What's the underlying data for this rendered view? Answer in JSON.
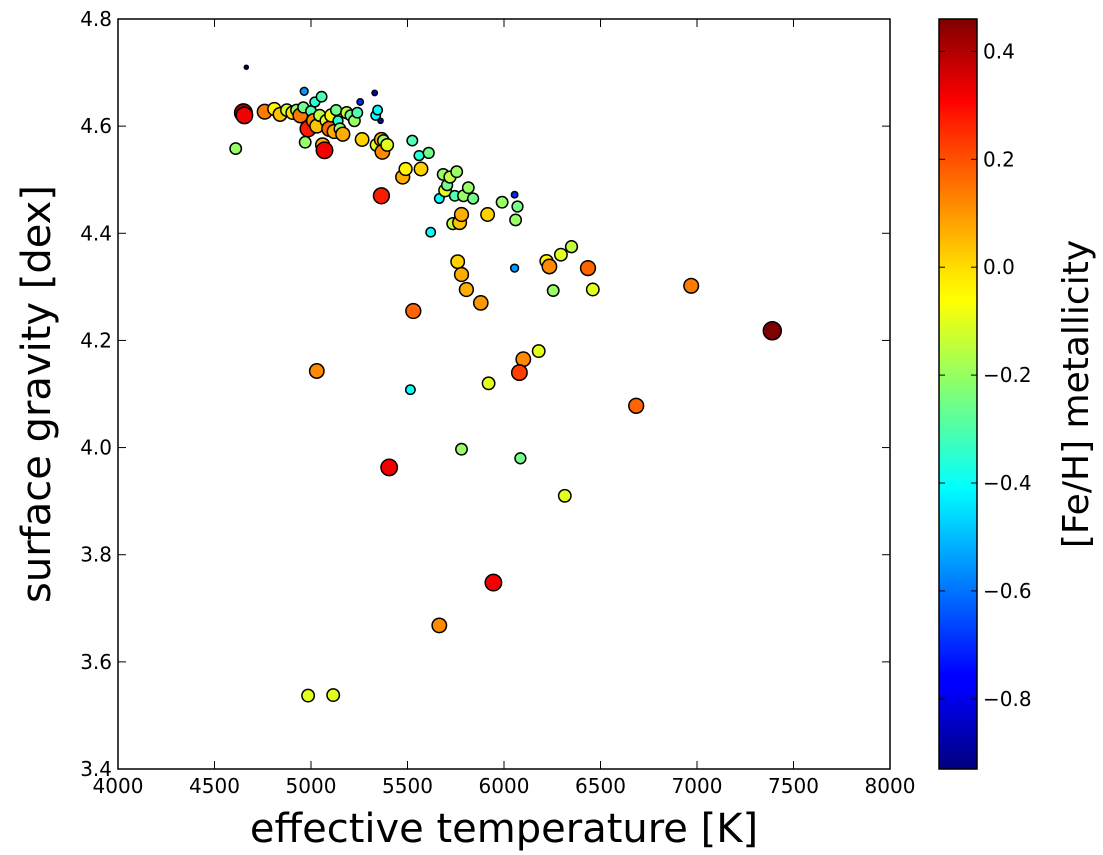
{
  "chart_data": {
    "type": "scatter",
    "title": "",
    "xlabel": "effective temperature [K]",
    "ylabel": "surface gravity [dex]",
    "xlim": [
      4000,
      8000
    ],
    "ylim": [
      3.4,
      4.8
    ],
    "x_ticks": [
      "4000",
      "4500",
      "5000",
      "5500",
      "6000",
      "6500",
      "7000",
      "7500",
      "8000"
    ],
    "y_ticks": [
      "3.4",
      "3.6",
      "3.8",
      "4.0",
      "4.2",
      "4.4",
      "4.6",
      "4.8"
    ],
    "grid": false,
    "colorbar": {
      "label": "[Fe/H] metallicity",
      "range": [
        -0.93,
        0.46
      ],
      "ticks": [
        "0.4",
        "0.2",
        "0.0",
        "−0.2",
        "−0.4",
        "−0.6",
        "−0.8"
      ],
      "tick_values": [
        0.4,
        0.2,
        0.0,
        -0.2,
        -0.4,
        -0.6,
        -0.8
      ],
      "colormap": "jet"
    },
    "note_marker_size": "marker size grows with metallicity",
    "points": [
      {
        "x": 4665,
        "y": 4.71,
        "feh": -0.93
      },
      {
        "x": 4650,
        "y": 4.625,
        "feh": 0.42
      },
      {
        "x": 4655,
        "y": 4.62,
        "feh": 0.3
      },
      {
        "x": 4760,
        "y": 4.627,
        "feh": 0.12
      },
      {
        "x": 4810,
        "y": 4.632,
        "feh": -0.05
      },
      {
        "x": 4840,
        "y": 4.622,
        "feh": 0.02
      },
      {
        "x": 4875,
        "y": 4.63,
        "feh": -0.12
      },
      {
        "x": 4905,
        "y": 4.625,
        "feh": -0.02
      },
      {
        "x": 4925,
        "y": 4.63,
        "feh": -0.2
      },
      {
        "x": 4945,
        "y": 4.62,
        "feh": 0.12
      },
      {
        "x": 4960,
        "y": 4.635,
        "feh": -0.25
      },
      {
        "x": 4965,
        "y": 4.665,
        "feh": -0.55
      },
      {
        "x": 4970,
        "y": 4.57,
        "feh": -0.2
      },
      {
        "x": 4985,
        "y": 4.595,
        "feh": 0.25
      },
      {
        "x": 5000,
        "y": 4.628,
        "feh": -0.3
      },
      {
        "x": 5015,
        "y": 4.61,
        "feh": 0.1
      },
      {
        "x": 5020,
        "y": 4.645,
        "feh": -0.35
      },
      {
        "x": 5030,
        "y": 4.6,
        "feh": 0.02
      },
      {
        "x": 5045,
        "y": 4.62,
        "feh": -0.15
      },
      {
        "x": 5055,
        "y": 4.655,
        "feh": -0.3
      },
      {
        "x": 5060,
        "y": 4.565,
        "feh": 0.05
      },
      {
        "x": 5070,
        "y": 4.555,
        "feh": 0.3
      },
      {
        "x": 5080,
        "y": 4.61,
        "feh": -0.1
      },
      {
        "x": 5095,
        "y": 4.595,
        "feh": 0.15
      },
      {
        "x": 5105,
        "y": 4.62,
        "feh": -0.05
      },
      {
        "x": 5120,
        "y": 4.59,
        "feh": 0.05
      },
      {
        "x": 5130,
        "y": 4.63,
        "feh": -0.25
      },
      {
        "x": 5140,
        "y": 4.61,
        "feh": -0.35
      },
      {
        "x": 5150,
        "y": 4.595,
        "feh": -0.2
      },
      {
        "x": 5165,
        "y": 4.585,
        "feh": 0.05
      },
      {
        "x": 5185,
        "y": 4.625,
        "feh": -0.15
      },
      {
        "x": 5205,
        "y": 4.62,
        "feh": -0.25
      },
      {
        "x": 5225,
        "y": 4.61,
        "feh": -0.2
      },
      {
        "x": 5240,
        "y": 4.625,
        "feh": -0.3
      },
      {
        "x": 5255,
        "y": 4.645,
        "feh": -0.7
      },
      {
        "x": 5265,
        "y": 4.575,
        "feh": 0.0
      },
      {
        "x": 5330,
        "y": 4.662,
        "feh": -0.8
      },
      {
        "x": 5335,
        "y": 4.62,
        "feh": -0.4
      },
      {
        "x": 5340,
        "y": 4.565,
        "feh": -0.1
      },
      {
        "x": 5345,
        "y": 4.63,
        "feh": -0.4
      },
      {
        "x": 5360,
        "y": 4.61,
        "feh": -0.82
      },
      {
        "x": 5365,
        "y": 4.575,
        "feh": 0.05
      },
      {
        "x": 5370,
        "y": 4.552,
        "feh": 0.1
      },
      {
        "x": 5375,
        "y": 4.573,
        "feh": -0.2
      },
      {
        "x": 5395,
        "y": 4.565,
        "feh": -0.1
      },
      {
        "x": 5365,
        "y": 4.47,
        "feh": 0.25
      },
      {
        "x": 5475,
        "y": 4.505,
        "feh": 0.05
      },
      {
        "x": 5490,
        "y": 4.52,
        "feh": -0.05
      },
      {
        "x": 5525,
        "y": 4.573,
        "feh": -0.3
      },
      {
        "x": 5560,
        "y": 4.545,
        "feh": -0.35
      },
      {
        "x": 5570,
        "y": 4.52,
        "feh": 0.0
      },
      {
        "x": 5610,
        "y": 4.55,
        "feh": -0.25
      },
      {
        "x": 5620,
        "y": 4.402,
        "feh": -0.4
      },
      {
        "x": 5665,
        "y": 4.465,
        "feh": -0.4
      },
      {
        "x": 5685,
        "y": 4.51,
        "feh": -0.2
      },
      {
        "x": 5695,
        "y": 4.48,
        "feh": -0.1
      },
      {
        "x": 5705,
        "y": 4.49,
        "feh": -0.25
      },
      {
        "x": 5720,
        "y": 4.505,
        "feh": -0.15
      },
      {
        "x": 5735,
        "y": 4.418,
        "feh": -0.15
      },
      {
        "x": 5745,
        "y": 4.47,
        "feh": -0.3
      },
      {
        "x": 5755,
        "y": 4.515,
        "feh": -0.2
      },
      {
        "x": 5760,
        "y": 4.347,
        "feh": 0.0
      },
      {
        "x": 5770,
        "y": 4.42,
        "feh": 0.02
      },
      {
        "x": 5780,
        "y": 4.435,
        "feh": 0.05
      },
      {
        "x": 5780,
        "y": 4.323,
        "feh": 0.05
      },
      {
        "x": 5790,
        "y": 4.47,
        "feh": -0.2
      },
      {
        "x": 5805,
        "y": 4.295,
        "feh": 0.05
      },
      {
        "x": 5815,
        "y": 4.485,
        "feh": -0.2
      },
      {
        "x": 5840,
        "y": 4.465,
        "feh": -0.25
      },
      {
        "x": 5880,
        "y": 4.27,
        "feh": 0.08
      },
      {
        "x": 5915,
        "y": 4.435,
        "feh": 0.0
      },
      {
        "x": 5990,
        "y": 4.458,
        "feh": -0.2
      },
      {
        "x": 6055,
        "y": 4.472,
        "feh": -0.7
      },
      {
        "x": 6055,
        "y": 4.335,
        "feh": -0.55
      },
      {
        "x": 6060,
        "y": 4.425,
        "feh": -0.2
      },
      {
        "x": 6070,
        "y": 4.45,
        "feh": -0.25
      },
      {
        "x": 6220,
        "y": 4.348,
        "feh": -0.05
      },
      {
        "x": 6235,
        "y": 4.338,
        "feh": 0.1
      },
      {
        "x": 6255,
        "y": 4.293,
        "feh": -0.2
      },
      {
        "x": 6295,
        "y": 4.36,
        "feh": -0.1
      },
      {
        "x": 6350,
        "y": 4.375,
        "feh": -0.15
      },
      {
        "x": 6435,
        "y": 4.335,
        "feh": 0.15
      },
      {
        "x": 6460,
        "y": 4.295,
        "feh": -0.1
      },
      {
        "x": 6970,
        "y": 4.302,
        "feh": 0.12
      },
      {
        "x": 7390,
        "y": 4.218,
        "feh": 0.46
      },
      {
        "x": 5530,
        "y": 4.255,
        "feh": 0.15
      },
      {
        "x": 6180,
        "y": 4.18,
        "feh": -0.1
      },
      {
        "x": 6100,
        "y": 4.165,
        "feh": 0.1
      },
      {
        "x": 6080,
        "y": 4.14,
        "feh": 0.2
      },
      {
        "x": 5920,
        "y": 4.12,
        "feh": -0.1
      },
      {
        "x": 5030,
        "y": 4.143,
        "feh": 0.1
      },
      {
        "x": 5515,
        "y": 4.108,
        "feh": -0.4
      },
      {
        "x": 6685,
        "y": 4.078,
        "feh": 0.15
      },
      {
        "x": 5780,
        "y": 3.997,
        "feh": -0.2
      },
      {
        "x": 6085,
        "y": 3.98,
        "feh": -0.25
      },
      {
        "x": 5405,
        "y": 3.963,
        "feh": 0.3
      },
      {
        "x": 6315,
        "y": 3.91,
        "feh": -0.1
      },
      {
        "x": 5945,
        "y": 3.748,
        "feh": 0.3
      },
      {
        "x": 5665,
        "y": 3.668,
        "feh": 0.1
      },
      {
        "x": 4985,
        "y": 3.537,
        "feh": -0.1
      },
      {
        "x": 5115,
        "y": 3.538,
        "feh": -0.1
      },
      {
        "x": 4610,
        "y": 4.558,
        "feh": -0.2
      }
    ]
  }
}
